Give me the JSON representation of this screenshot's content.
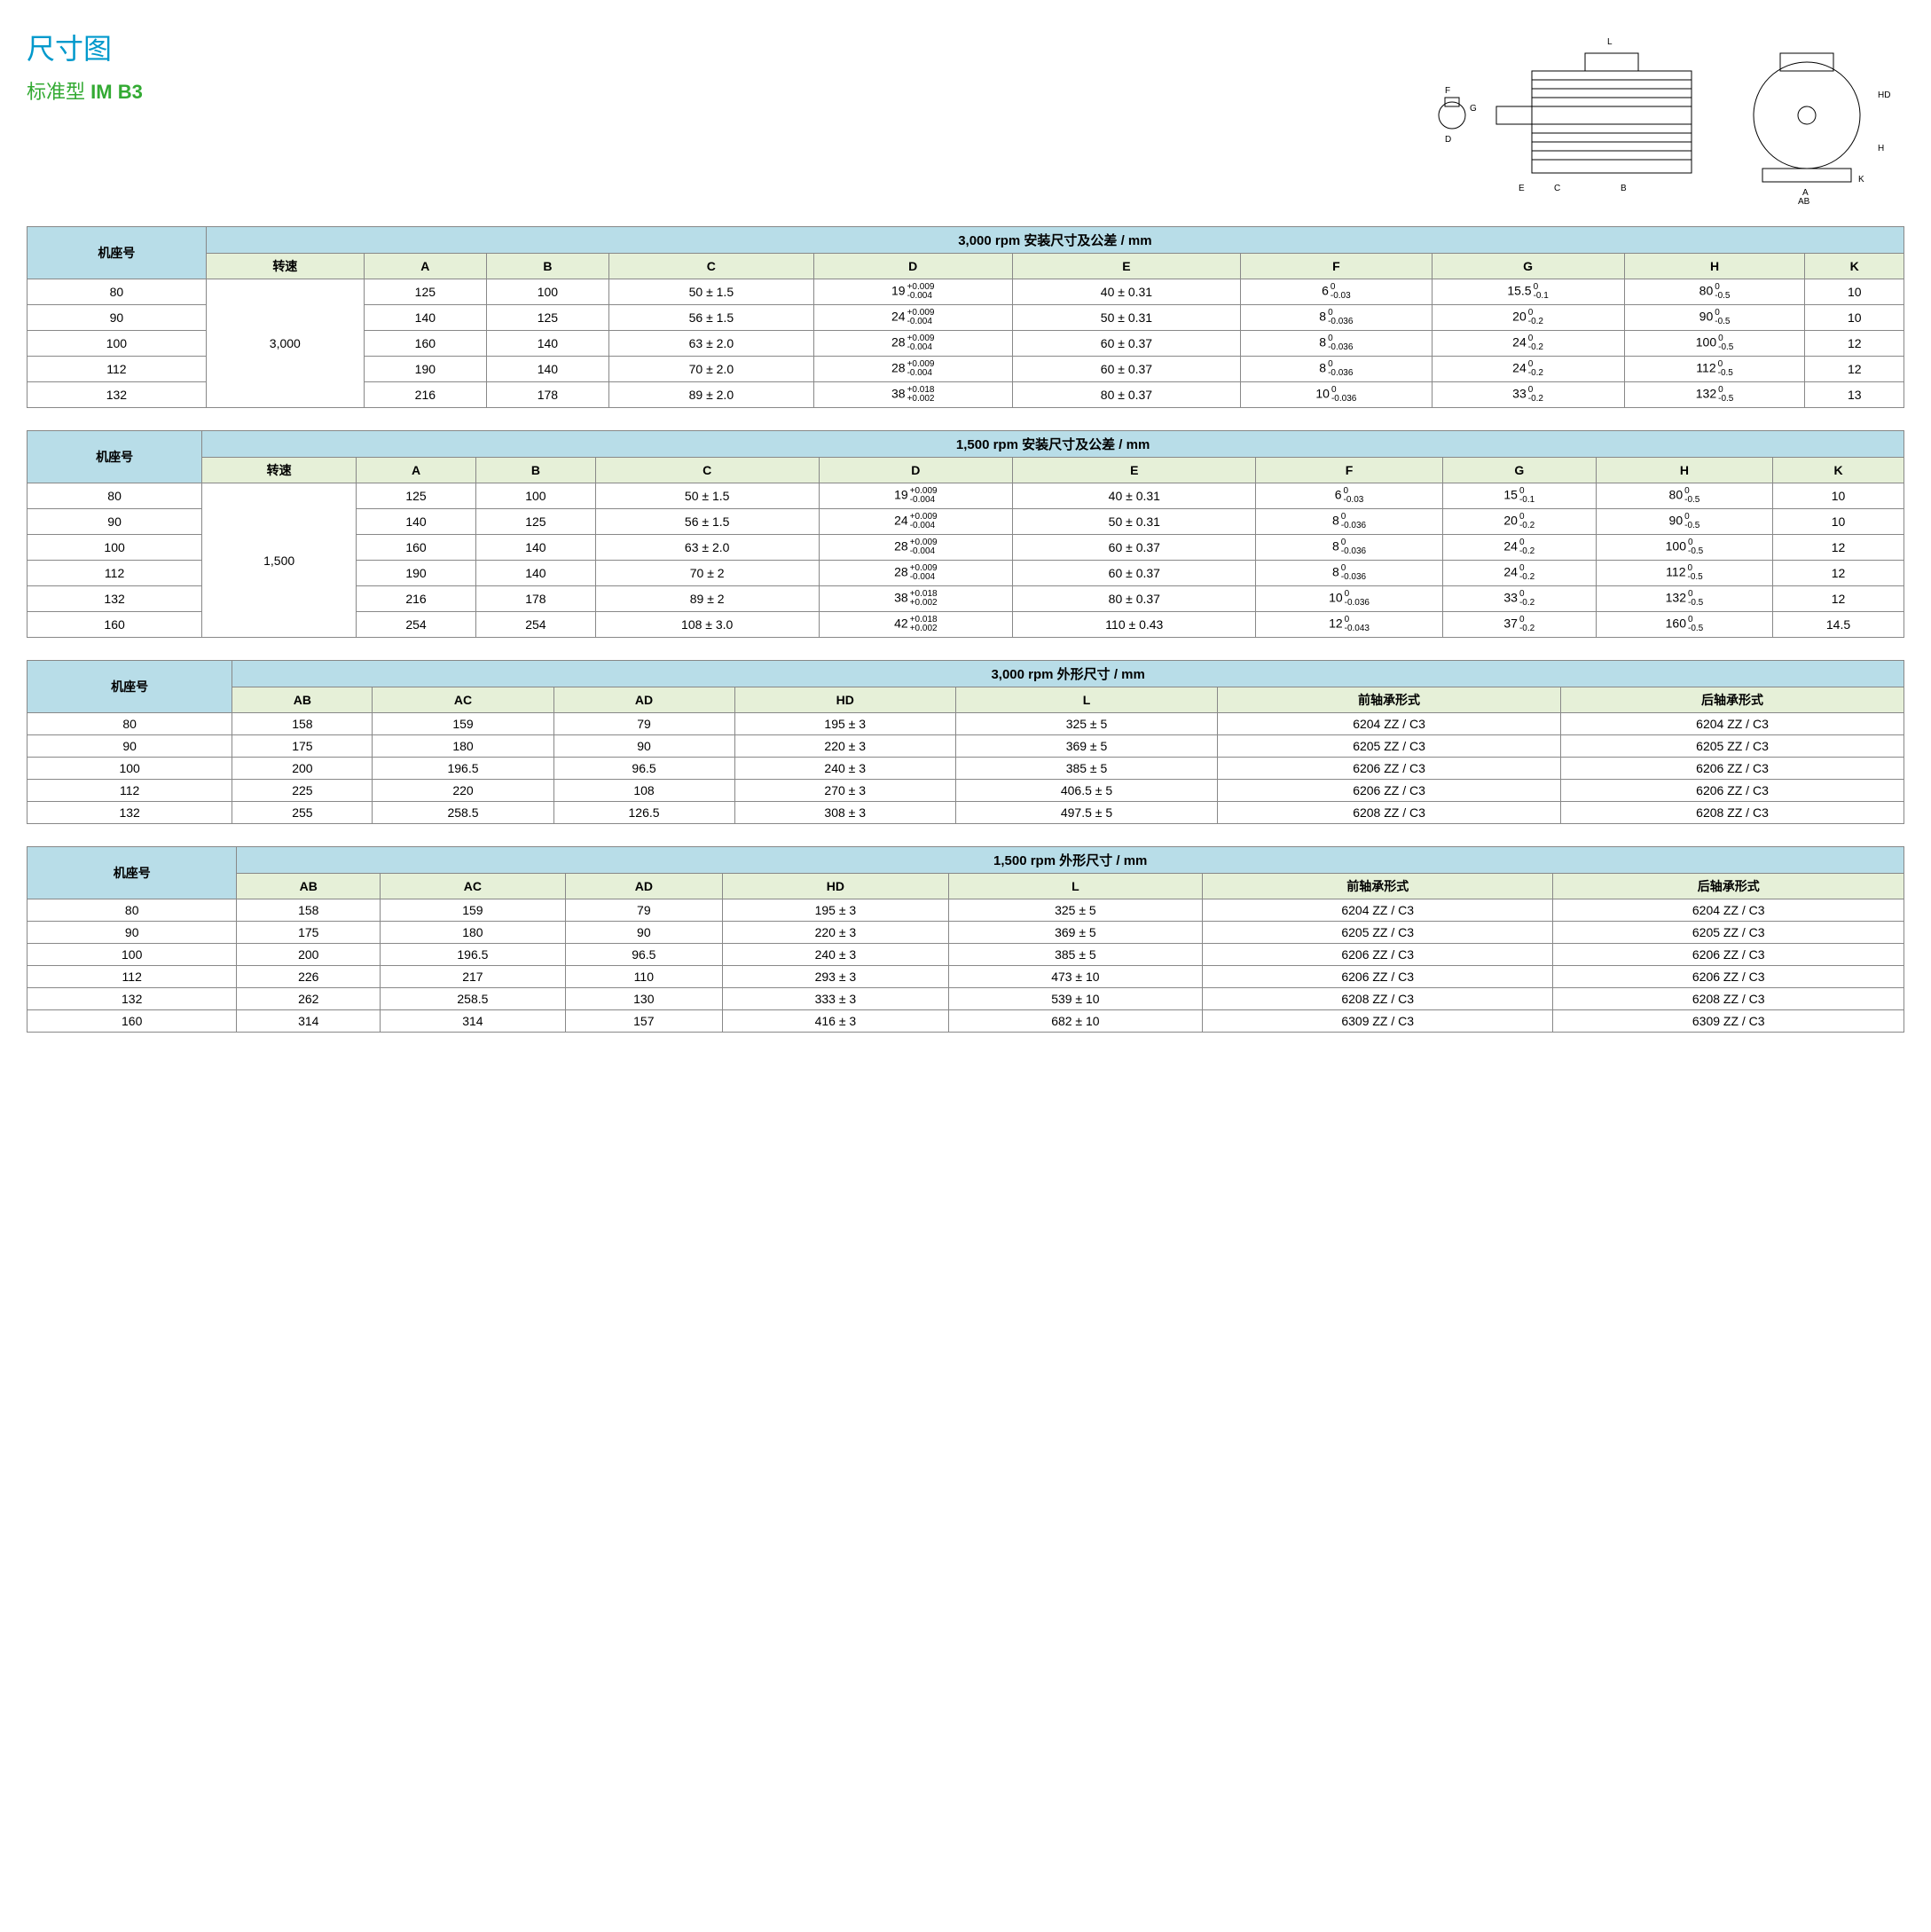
{
  "titles": {
    "main": "尺寸图",
    "sub_prefix": "标准型",
    "sub_bold": "IM B3"
  },
  "colors": {
    "title_color": "#0099cc",
    "subtitle_color": "#33aa33",
    "header_bg_blue": "#b8dde8",
    "header_bg_green": "#e6f0d8",
    "border": "#888888"
  },
  "table1": {
    "title": "3,000 rpm 安装尺寸及公差 / mm",
    "frame_label": "机座号",
    "speed_label": "转速",
    "speed_value": "3,000",
    "cols": [
      "A",
      "B",
      "C",
      "D",
      "E",
      "F",
      "G",
      "H",
      "K"
    ],
    "rows": [
      {
        "frame": "80",
        "A": "125",
        "B": "100",
        "C": "50 ± 1.5",
        "D": "19",
        "Dtol": [
          "+0.009",
          "-0.004"
        ],
        "E": "40 ± 0.31",
        "F": "6",
        "Ftol": [
          "0",
          "-0.03"
        ],
        "G": "15.5",
        "Gtol": [
          "0",
          "-0.1"
        ],
        "H": "80",
        "Htol": [
          "0",
          "-0.5"
        ],
        "K": "10"
      },
      {
        "frame": "90",
        "A": "140",
        "B": "125",
        "C": "56 ± 1.5",
        "D": "24",
        "Dtol": [
          "+0.009",
          "-0.004"
        ],
        "E": "50 ± 0.31",
        "F": "8",
        "Ftol": [
          "0",
          "-0.036"
        ],
        "G": "20",
        "Gtol": [
          "0",
          "-0.2"
        ],
        "H": "90",
        "Htol": [
          "0",
          "-0.5"
        ],
        "K": "10"
      },
      {
        "frame": "100",
        "A": "160",
        "B": "140",
        "C": "63 ± 2.0",
        "D": "28",
        "Dtol": [
          "+0.009",
          "-0.004"
        ],
        "E": "60 ± 0.37",
        "F": "8",
        "Ftol": [
          "0",
          "-0.036"
        ],
        "G": "24",
        "Gtol": [
          "0",
          "-0.2"
        ],
        "H": "100",
        "Htol": [
          "0",
          "-0.5"
        ],
        "K": "12"
      },
      {
        "frame": "112",
        "A": "190",
        "B": "140",
        "C": "70 ± 2.0",
        "D": "28",
        "Dtol": [
          "+0.009",
          "-0.004"
        ],
        "E": "60 ± 0.37",
        "F": "8",
        "Ftol": [
          "0",
          "-0.036"
        ],
        "G": "24",
        "Gtol": [
          "0",
          "-0.2"
        ],
        "H": "112",
        "Htol": [
          "0",
          "-0.5"
        ],
        "K": "12"
      },
      {
        "frame": "132",
        "A": "216",
        "B": "178",
        "C": "89 ± 2.0",
        "D": "38",
        "Dtol": [
          "+0.018",
          "+0.002"
        ],
        "E": "80 ± 0.37",
        "F": "10",
        "Ftol": [
          "0",
          "-0.036"
        ],
        "G": "33",
        "Gtol": [
          "0",
          "-0.2"
        ],
        "H": "132",
        "Htol": [
          "0",
          "-0.5"
        ],
        "K": "13"
      }
    ]
  },
  "table2": {
    "title": "1,500 rpm 安装尺寸及公差 / mm",
    "frame_label": "机座号",
    "speed_label": "转速",
    "speed_value": "1,500",
    "cols": [
      "A",
      "B",
      "C",
      "D",
      "E",
      "F",
      "G",
      "H",
      "K"
    ],
    "rows": [
      {
        "frame": "80",
        "A": "125",
        "B": "100",
        "C": "50 ± 1.5",
        "D": "19",
        "Dtol": [
          "+0.009",
          "-0.004"
        ],
        "E": "40 ± 0.31",
        "F": "6",
        "Ftol": [
          "0",
          "-0.03"
        ],
        "G": "15",
        "Gtol": [
          "0",
          "-0.1"
        ],
        "H": "80",
        "Htol": [
          "0",
          "-0.5"
        ],
        "K": "10"
      },
      {
        "frame": "90",
        "A": "140",
        "B": "125",
        "C": "56 ± 1.5",
        "D": "24",
        "Dtol": [
          "+0.009",
          "-0.004"
        ],
        "E": "50 ± 0.31",
        "F": "8",
        "Ftol": [
          "0",
          "-0.036"
        ],
        "G": "20",
        "Gtol": [
          "0",
          "-0.2"
        ],
        "H": "90",
        "Htol": [
          "0",
          "-0.5"
        ],
        "K": "10"
      },
      {
        "frame": "100",
        "A": "160",
        "B": "140",
        "C": "63 ± 2.0",
        "D": "28",
        "Dtol": [
          "+0.009",
          "-0.004"
        ],
        "E": "60 ± 0.37",
        "F": "8",
        "Ftol": [
          "0",
          "-0.036"
        ],
        "G": "24",
        "Gtol": [
          "0",
          "-0.2"
        ],
        "H": "100",
        "Htol": [
          "0",
          "-0.5"
        ],
        "K": "12"
      },
      {
        "frame": "112",
        "A": "190",
        "B": "140",
        "C": "70 ± 2",
        "D": "28",
        "Dtol": [
          "+0.009",
          "-0.004"
        ],
        "E": "60 ± 0.37",
        "F": "8",
        "Ftol": [
          "0",
          "-0.036"
        ],
        "G": "24",
        "Gtol": [
          "0",
          "-0.2"
        ],
        "H": "112",
        "Htol": [
          "0",
          "-0.5"
        ],
        "K": "12"
      },
      {
        "frame": "132",
        "A": "216",
        "B": "178",
        "C": "89 ± 2",
        "D": "38",
        "Dtol": [
          "+0.018",
          "+0.002"
        ],
        "E": "80 ± 0.37",
        "F": "10",
        "Ftol": [
          "0",
          "-0.036"
        ],
        "G": "33",
        "Gtol": [
          "0",
          "-0.2"
        ],
        "H": "132",
        "Htol": [
          "0",
          "-0.5"
        ],
        "K": "12"
      },
      {
        "frame": "160",
        "A": "254",
        "B": "254",
        "C": "108 ± 3.0",
        "D": "42",
        "Dtol": [
          "+0.018",
          "+0.002"
        ],
        "E": "110 ± 0.43",
        "F": "12",
        "Ftol": [
          "0",
          "-0.043"
        ],
        "G": "37",
        "Gtol": [
          "0",
          "-0.2"
        ],
        "H": "160",
        "Htol": [
          "0",
          "-0.5"
        ],
        "K": "14.5"
      }
    ]
  },
  "table3": {
    "title": "3,000 rpm 外形尺寸 / mm",
    "frame_label": "机座号",
    "cols": [
      "AB",
      "AC",
      "AD",
      "HD",
      "L",
      "前轴承形式",
      "后轴承形式"
    ],
    "rows": [
      [
        "80",
        "158",
        "159",
        "79",
        "195 ± 3",
        "325 ± 5",
        "6204 ZZ / C3",
        "6204 ZZ / C3"
      ],
      [
        "90",
        "175",
        "180",
        "90",
        "220 ± 3",
        "369 ± 5",
        "6205 ZZ / C3",
        "6205 ZZ / C3"
      ],
      [
        "100",
        "200",
        "196.5",
        "96.5",
        "240 ± 3",
        "385 ± 5",
        "6206 ZZ / C3",
        "6206 ZZ / C3"
      ],
      [
        "112",
        "225",
        "220",
        "108",
        "270 ± 3",
        "406.5 ± 5",
        "6206 ZZ / C3",
        "6206 ZZ / C3"
      ],
      [
        "132",
        "255",
        "258.5",
        "126.5",
        "308 ± 3",
        "497.5 ± 5",
        "6208 ZZ / C3",
        "6208 ZZ / C3"
      ]
    ]
  },
  "table4": {
    "title": "1,500 rpm 外形尺寸 / mm",
    "frame_label": "机座号",
    "cols": [
      "AB",
      "AC",
      "AD",
      "HD",
      "L",
      "前轴承形式",
      "后轴承形式"
    ],
    "rows": [
      [
        "80",
        "158",
        "159",
        "79",
        "195 ± 3",
        "325 ± 5",
        "6204 ZZ / C3",
        "6204 ZZ / C3"
      ],
      [
        "90",
        "175",
        "180",
        "90",
        "220 ± 3",
        "369 ± 5",
        "6205 ZZ / C3",
        "6205 ZZ / C3"
      ],
      [
        "100",
        "200",
        "196.5",
        "96.5",
        "240 ± 3",
        "385 ± 5",
        "6206 ZZ / C3",
        "6206 ZZ / C3"
      ],
      [
        "112",
        "226",
        "217",
        "110",
        "293 ± 3",
        "473 ± 10",
        "6206 ZZ / C3",
        "6206 ZZ / C3"
      ],
      [
        "132",
        "262",
        "258.5",
        "130",
        "333 ± 3",
        "539 ± 10",
        "6208 ZZ / C3",
        "6208 ZZ / C3"
      ],
      [
        "160",
        "314",
        "314",
        "157",
        "416 ± 3",
        "682 ± 10",
        "6309 ZZ / C3",
        "6309 ZZ / C3"
      ]
    ]
  },
  "diagram_labels": [
    "L",
    "E",
    "C",
    "B",
    "F",
    "G",
    "D",
    "A",
    "AB",
    "K",
    "H",
    "HD"
  ]
}
